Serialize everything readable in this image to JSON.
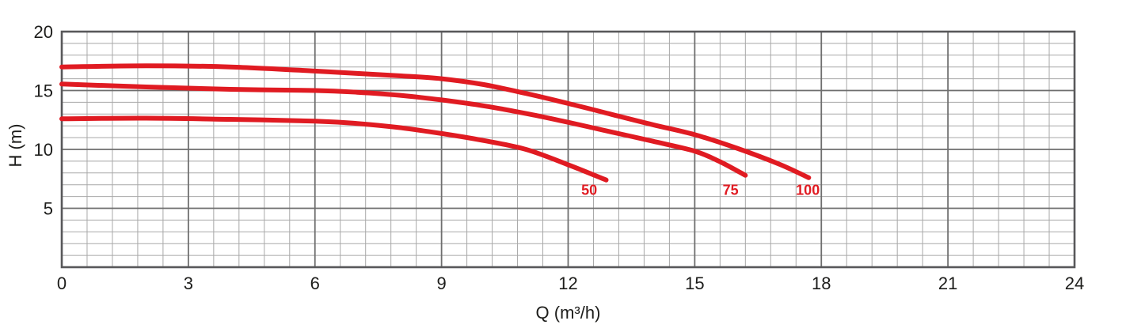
{
  "chart_data": {
    "type": "line",
    "title": "",
    "xlabel": "Q (m³/h)",
    "ylabel": "H (m)",
    "xlim": [
      0,
      24
    ],
    "ylim": [
      0,
      20
    ],
    "x_ticks": [
      0,
      3,
      6,
      9,
      12,
      15,
      18,
      21,
      24
    ],
    "y_ticks": [
      5,
      10,
      15,
      20
    ],
    "x_major_step": 3,
    "x_minor_step": 0.6,
    "y_major_step": 5,
    "y_minor_step": 1,
    "grid": "major and minor on",
    "legend_position": "inline curve labels",
    "series": [
      {
        "name": "50",
        "points": [
          [
            0,
            12.6
          ],
          [
            2,
            12.65
          ],
          [
            4,
            12.55
          ],
          [
            6,
            12.4
          ],
          [
            7,
            12.2
          ],
          [
            8,
            11.85
          ],
          [
            9,
            11.35
          ],
          [
            10,
            10.75
          ],
          [
            11,
            10.0
          ],
          [
            12,
            8.7
          ],
          [
            12.9,
            7.4
          ]
        ],
        "label": {
          "text": "50",
          "q": 12.5,
          "h": 6.6
        }
      },
      {
        "name": "75",
        "points": [
          [
            0,
            15.55
          ],
          [
            2,
            15.3
          ],
          [
            4,
            15.1
          ],
          [
            6,
            15.0
          ],
          [
            7,
            14.85
          ],
          [
            8,
            14.6
          ],
          [
            9,
            14.2
          ],
          [
            10,
            13.7
          ],
          [
            11,
            13.05
          ],
          [
            12,
            12.3
          ],
          [
            13,
            11.5
          ],
          [
            14,
            10.7
          ],
          [
            15,
            9.85
          ],
          [
            15.6,
            8.95
          ],
          [
            16.2,
            7.8
          ]
        ],
        "label": {
          "text": "75",
          "q": 15.85,
          "h": 6.6
        }
      },
      {
        "name": "100",
        "points": [
          [
            0,
            17.0
          ],
          [
            2,
            17.1
          ],
          [
            4,
            17.0
          ],
          [
            6,
            16.65
          ],
          [
            7,
            16.45
          ],
          [
            8,
            16.25
          ],
          [
            9,
            16.0
          ],
          [
            10,
            15.5
          ],
          [
            11,
            14.75
          ],
          [
            12,
            13.9
          ],
          [
            13,
            13.0
          ],
          [
            14,
            12.1
          ],
          [
            15,
            11.25
          ],
          [
            16,
            10.1
          ],
          [
            17,
            8.75
          ],
          [
            17.7,
            7.6
          ]
        ],
        "label": {
          "text": "100",
          "q": 17.68,
          "h": 6.6
        }
      }
    ]
  },
  "colors": {
    "curve_red": "#e01b22",
    "grid_minor": "#a8a8a8",
    "grid_major": "#6e6e6e",
    "plot_border": "#58585a",
    "tick_text": "#1d1d1b",
    "background": "#ffffff"
  }
}
